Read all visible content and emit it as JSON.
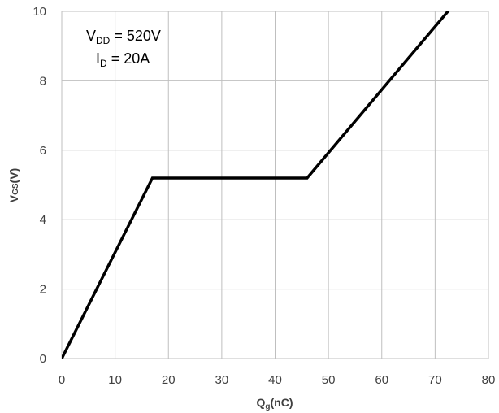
{
  "chart_data": {
    "type": "line",
    "xlabel": {
      "main": "Q",
      "sub": "g",
      "suffix": "(nC)"
    },
    "ylabel": {
      "main": "V",
      "sub": "GS",
      "suffix": "(V)"
    },
    "xlim": [
      0,
      80
    ],
    "ylim": [
      0,
      10
    ],
    "xticks": [
      "0",
      "10",
      "20",
      "30",
      "40",
      "50",
      "60",
      "70",
      "80"
    ],
    "yticks": [
      "0",
      "2",
      "4",
      "6",
      "8",
      "10"
    ],
    "grid": true,
    "series": [
      {
        "x": [
          0,
          17,
          46,
          73.5
        ],
        "y": [
          0,
          5.2,
          5.2,
          10.2
        ]
      }
    ],
    "annotations": [
      {
        "main": "V",
        "sub": "DD",
        "rest": " = 520V"
      },
      {
        "main": "I",
        "sub": "D",
        "rest": " = 20A"
      }
    ],
    "colors": {
      "line": "#000000",
      "grid": "#bfbfbf",
      "text": "#404040"
    }
  }
}
